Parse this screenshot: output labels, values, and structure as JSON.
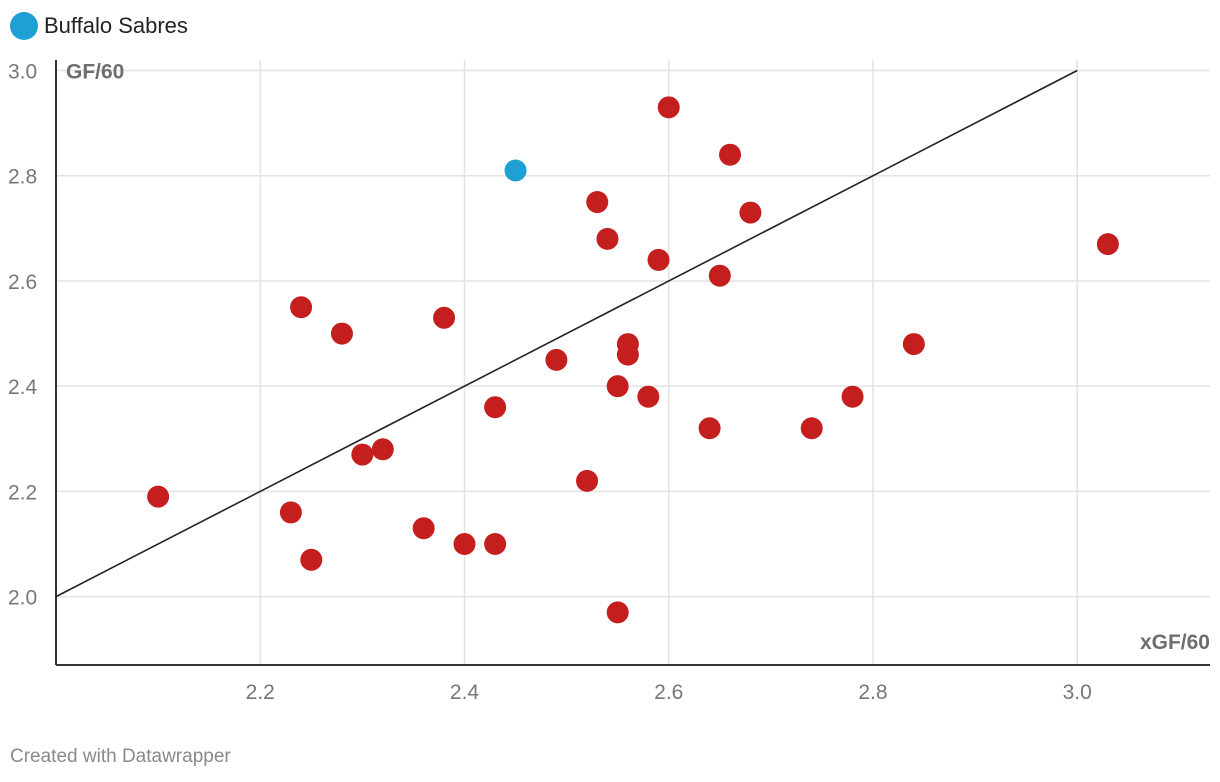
{
  "legend": {
    "label": "Buffalo Sabres",
    "color": "#1ea0d4"
  },
  "footer": {
    "text": "Created with Datawrapper"
  },
  "chart_data": {
    "type": "scatter",
    "title": "",
    "xlabel": "xGF/60",
    "ylabel": "GF/60",
    "xlim": [
      2.0,
      3.13
    ],
    "ylim": [
      1.87,
      3.02
    ],
    "x_ticks": [
      2.2,
      2.4,
      2.6,
      2.8,
      3.0
    ],
    "x_tick_labels": [
      "2.2",
      "2.4",
      "2.6",
      "2.8",
      "3.0"
    ],
    "y_ticks": [
      2.0,
      2.2,
      2.4,
      2.6,
      2.8,
      3.0
    ],
    "y_tick_labels": [
      "2.0",
      "2.2",
      "2.4",
      "2.6",
      "2.8",
      "3.0"
    ],
    "grid": true,
    "legend_position": "top-left",
    "reference_line": {
      "from": [
        2.0,
        2.0
      ],
      "to": [
        3.0,
        3.0
      ],
      "color": "#222222"
    },
    "colors": {
      "highlight": "#1ea0d4",
      "other": "#c41e1e"
    },
    "points": [
      {
        "x": 2.45,
        "y": 2.81,
        "highlight": true
      },
      {
        "x": 2.6,
        "y": 2.93
      },
      {
        "x": 2.66,
        "y": 2.84
      },
      {
        "x": 2.53,
        "y": 2.75
      },
      {
        "x": 2.68,
        "y": 2.73
      },
      {
        "x": 2.54,
        "y": 2.68
      },
      {
        "x": 3.03,
        "y": 2.67
      },
      {
        "x": 2.59,
        "y": 2.64
      },
      {
        "x": 2.65,
        "y": 2.61
      },
      {
        "x": 2.24,
        "y": 2.55
      },
      {
        "x": 2.38,
        "y": 2.53
      },
      {
        "x": 2.28,
        "y": 2.5
      },
      {
        "x": 2.56,
        "y": 2.48
      },
      {
        "x": 2.84,
        "y": 2.48
      },
      {
        "x": 2.56,
        "y": 2.46
      },
      {
        "x": 2.49,
        "y": 2.45
      },
      {
        "x": 2.55,
        "y": 2.4
      },
      {
        "x": 2.58,
        "y": 2.38
      },
      {
        "x": 2.78,
        "y": 2.38
      },
      {
        "x": 2.43,
        "y": 2.36
      },
      {
        "x": 2.64,
        "y": 2.32
      },
      {
        "x": 2.74,
        "y": 2.32
      },
      {
        "x": 2.32,
        "y": 2.28
      },
      {
        "x": 2.3,
        "y": 2.27
      },
      {
        "x": 2.52,
        "y": 2.22
      },
      {
        "x": 2.1,
        "y": 2.19
      },
      {
        "x": 2.23,
        "y": 2.16
      },
      {
        "x": 2.36,
        "y": 2.13
      },
      {
        "x": 2.4,
        "y": 2.1
      },
      {
        "x": 2.43,
        "y": 2.1
      },
      {
        "x": 2.25,
        "y": 2.07
      },
      {
        "x": 2.55,
        "y": 1.97
      }
    ]
  }
}
